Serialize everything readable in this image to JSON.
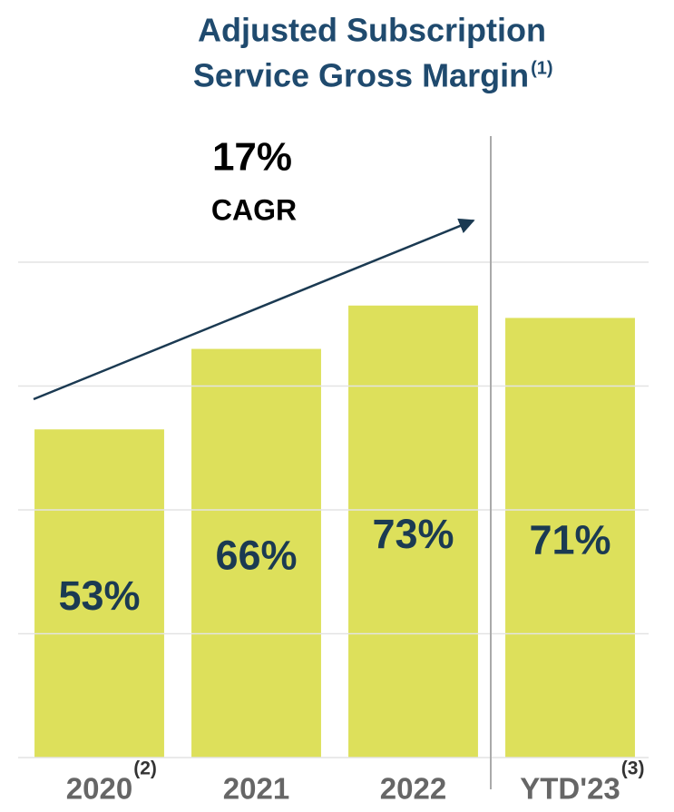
{
  "chart_data": {
    "type": "bar",
    "title_lines": [
      "Adjusted Subscription",
      "Service Gross Margin"
    ],
    "title_note": "(1)",
    "categories": [
      "2020",
      "2021",
      "2022",
      "YTD'23"
    ],
    "category_notes": [
      "(2)",
      null,
      null,
      "(3)"
    ],
    "values": [
      53,
      66,
      73,
      71
    ],
    "value_labels": [
      "53%",
      "66%",
      "73%",
      "71%"
    ],
    "color": "#dde05b",
    "ylim": [
      0,
      80
    ],
    "yticks": [
      0,
      20,
      40,
      60,
      80
    ],
    "grid": true,
    "annotation": {
      "value": "17%",
      "label": "CAGR"
    }
  }
}
